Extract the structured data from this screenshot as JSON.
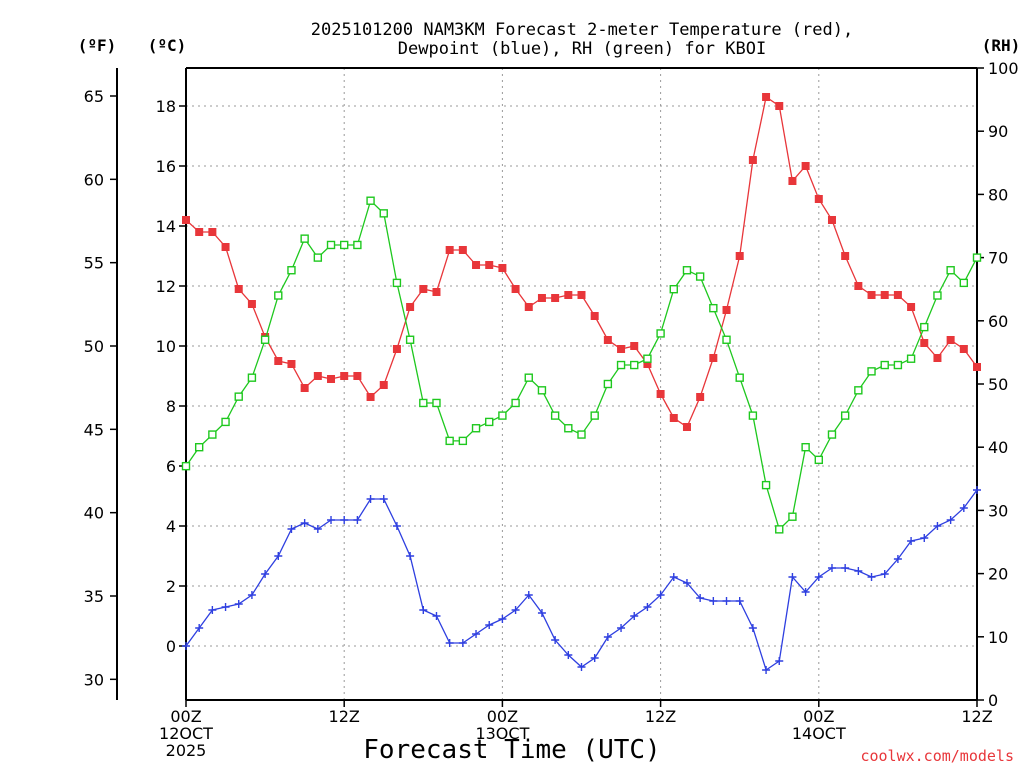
{
  "chart_data": {
    "type": "line",
    "title_line1": "2025101200 NAM3KM Forecast 2-meter Temperature (red),",
    "title_line2": "Dewpoint (blue), RH (green) for KBOI",
    "xlabel": "Forecast Time (UTC)",
    "ylabel_f": "(ºF)",
    "ylabel_c": "(ºC)",
    "ylabel_rh": "(RH)",
    "watermark": "coolwx.com/models",
    "x_range_hours": [
      0,
      60
    ],
    "ylim_c": [
      -1.8,
      19.5
    ],
    "ylim_rh": [
      0,
      100
    ],
    "grid": true,
    "x_ticks": [
      {
        "hour": 0,
        "line1": "00Z",
        "line2": "12OCT",
        "line3": "2025"
      },
      {
        "hour": 12,
        "line1": "12Z",
        "line2": "",
        "line3": ""
      },
      {
        "hour": 24,
        "line1": "00Z",
        "line2": "13OCT",
        "line3": ""
      },
      {
        "hour": 36,
        "line1": "12Z",
        "line2": "",
        "line3": ""
      },
      {
        "hour": 48,
        "line1": "00Z",
        "line2": "14OCT",
        "line3": ""
      },
      {
        "hour": 60,
        "line1": "12Z",
        "line2": "",
        "line3": ""
      }
    ],
    "c_ticks": [
      {
        "value": 0,
        "label": "0"
      },
      {
        "value": 2,
        "label": "2"
      },
      {
        "value": 4,
        "label": "4"
      },
      {
        "value": 6,
        "label": "6"
      },
      {
        "value": 8,
        "label": "8"
      },
      {
        "value": 10,
        "label": "10"
      },
      {
        "value": 12,
        "label": "12"
      },
      {
        "value": 14,
        "label": "14"
      },
      {
        "value": 16,
        "label": "16"
      },
      {
        "value": 18,
        "label": "18"
      }
    ],
    "f_ticks": [
      {
        "value": 30,
        "label": "30"
      },
      {
        "value": 35,
        "label": "35"
      },
      {
        "value": 40,
        "label": "40"
      },
      {
        "value": 45,
        "label": "45"
      },
      {
        "value": 50,
        "label": "50"
      },
      {
        "value": 55,
        "label": "55"
      },
      {
        "value": 60,
        "label": "60"
      },
      {
        "value": 65,
        "label": "65"
      }
    ],
    "rh_ticks": [
      {
        "value": 0,
        "label": "0"
      },
      {
        "value": 10,
        "label": "10"
      },
      {
        "value": 20,
        "label": "20"
      },
      {
        "value": 30,
        "label": "30"
      },
      {
        "value": 40,
        "label": "40"
      },
      {
        "value": 50,
        "label": "50"
      },
      {
        "value": 60,
        "label": "60"
      },
      {
        "value": 70,
        "label": "70"
      },
      {
        "value": 80,
        "label": "80"
      },
      {
        "value": 90,
        "label": "90"
      },
      {
        "value": 100,
        "label": "100"
      }
    ],
    "hours": [
      0,
      1,
      2,
      3,
      4,
      5,
      6,
      7,
      8,
      9,
      10,
      11,
      12,
      13,
      14,
      15,
      16,
      17,
      18,
      19,
      20,
      21,
      22,
      23,
      24,
      25,
      26,
      27,
      28,
      29,
      30,
      31,
      32,
      33,
      34,
      35,
      36,
      37,
      38,
      39,
      40,
      41,
      42,
      43,
      44,
      45,
      46,
      47,
      48,
      49,
      50,
      51,
      52,
      53,
      54,
      55,
      56,
      57,
      58,
      59,
      60
    ],
    "series": [
      {
        "name": "Temperature",
        "axis": "c",
        "color": "#e8363a",
        "marker": "filled-square",
        "values": [
          14.2,
          13.8,
          13.8,
          13.3,
          11.9,
          11.4,
          10.3,
          9.5,
          9.4,
          8.6,
          9.0,
          8.9,
          9.0,
          9.0,
          8.3,
          8.7,
          9.9,
          11.3,
          11.9,
          11.8,
          13.2,
          13.2,
          12.7,
          12.7,
          12.6,
          11.9,
          11.3,
          11.6,
          11.6,
          11.7,
          11.7,
          11.0,
          10.2,
          9.9,
          10.0,
          9.4,
          8.4,
          7.6,
          7.3,
          8.3,
          9.6,
          11.2,
          13.0,
          16.2,
          18.3,
          18.0,
          15.5,
          16.0,
          14.9,
          14.2,
          13.0,
          12.0,
          11.7,
          11.7,
          11.7,
          11.3,
          10.1,
          9.6,
          10.2,
          9.9,
          9.3
        ]
      },
      {
        "name": "Dewpoint",
        "axis": "c",
        "color": "#2e3fe0",
        "marker": "plus",
        "values": [
          0.0,
          0.6,
          1.2,
          1.3,
          1.4,
          1.7,
          2.4,
          3.0,
          3.9,
          4.1,
          3.9,
          4.2,
          4.2,
          4.2,
          4.9,
          4.9,
          4.0,
          3.0,
          1.2,
          1.0,
          0.1,
          0.1,
          0.4,
          0.7,
          0.9,
          1.2,
          1.7,
          1.1,
          0.2,
          -0.3,
          -0.7,
          -0.4,
          0.3,
          0.6,
          1.0,
          1.3,
          1.7,
          2.3,
          2.1,
          1.6,
          1.5,
          1.5,
          1.5,
          0.6,
          -0.8,
          -0.5,
          2.3,
          1.8,
          2.3,
          2.6,
          2.6,
          2.5,
          2.3,
          2.4,
          2.9,
          3.5,
          3.6,
          4.0,
          4.2,
          4.6,
          5.2
        ]
      },
      {
        "name": "RH",
        "axis": "rh",
        "color": "#1ec81e",
        "marker": "open-square",
        "values": [
          37,
          40,
          42,
          44,
          48,
          51,
          57,
          64,
          68,
          73,
          70,
          72,
          72,
          72,
          79,
          77,
          66,
          57,
          47,
          47,
          41,
          41,
          43,
          44,
          45,
          47,
          51,
          49,
          45,
          43,
          42,
          45,
          50,
          53,
          53,
          54,
          58,
          65,
          68,
          67,
          62,
          57,
          51,
          45,
          34,
          27,
          29,
          40,
          38,
          42,
          45,
          49,
          52,
          53,
          53,
          54,
          59,
          64,
          68,
          66,
          70
        ]
      }
    ]
  }
}
